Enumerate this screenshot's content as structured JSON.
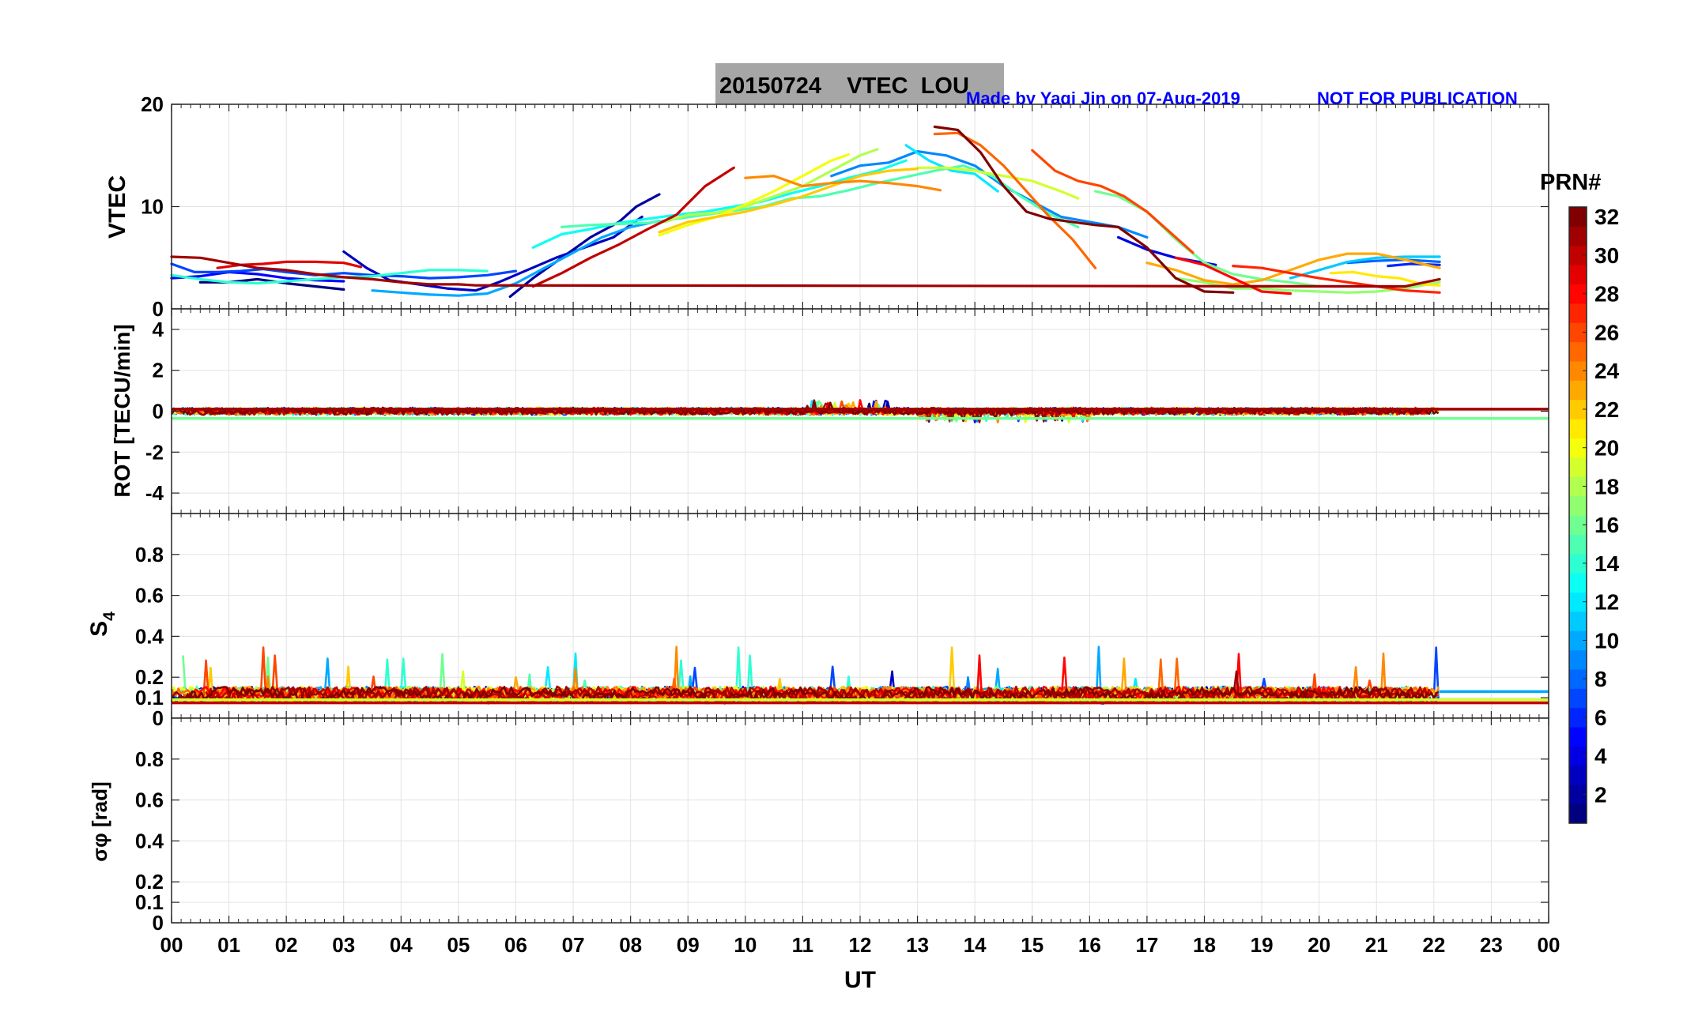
{
  "header": {
    "title": "20150724    VTEC  LOU",
    "credit": "Made by Yaqi Jin on 07-Aug-2019",
    "notice": "NOT FOR PUBLICATION"
  },
  "colors": {
    "title_box": "#a6a6a6",
    "credit_text": "#0000ff",
    "grid": "#e3e3e3",
    "axes": "#262626"
  },
  "colorbar": {
    "title": "PRN#",
    "min": 1,
    "max": 32,
    "ticks": [
      "2",
      "4",
      "6",
      "8",
      "10",
      "12",
      "14",
      "16",
      "18",
      "20",
      "22",
      "24",
      "26",
      "28",
      "30",
      "32"
    ],
    "colormap": "jet"
  },
  "chart_data": [
    {
      "type": "line",
      "panel": "vtec",
      "ylabel": "VTEC",
      "ylim": [
        0,
        20
      ],
      "yticks": [
        "0",
        "10",
        "20"
      ],
      "xlim": [
        0,
        24
      ],
      "grid": true,
      "series": [
        {
          "prn": 1,
          "x": [
            0.5,
            1,
            1.5,
            2,
            2.5,
            3
          ],
          "y": [
            2.6,
            2.6,
            2.9,
            2.5,
            2.2,
            1.9
          ]
        },
        {
          "prn": 2,
          "x": [
            5.9,
            6.3,
            6.8,
            7.3,
            7.8,
            8.1,
            8.5
          ],
          "y": [
            1.2,
            3.0,
            5.0,
            7.0,
            8.5,
            10.0,
            11.2
          ]
        },
        {
          "prn": 3,
          "x": [
            3,
            3.4,
            3.8,
            4.3,
            4.8,
            5.3,
            5.7,
            6.2,
            6.7,
            7.2,
            7.7,
            8.2
          ],
          "y": [
            5.6,
            4.0,
            2.8,
            2.4,
            2.0,
            1.8,
            2.6,
            3.8,
            5.0,
            6.0,
            7.0,
            9.0
          ]
        },
        {
          "prn": 4,
          "x": [
            16.5,
            17,
            17.5,
            18.2
          ],
          "y": [
            7.0,
            5.8,
            5.0,
            4.3
          ]
        },
        {
          "prn": 5,
          "x": [
            0,
            0.5,
            1,
            1.5,
            2,
            2.5,
            3
          ],
          "y": [
            3.0,
            3.2,
            3.6,
            3.4,
            3.0,
            2.8,
            2.7
          ]
        },
        {
          "prn": 6,
          "x": [
            21.2,
            21.6,
            22.1
          ],
          "y": [
            4.2,
            4.4,
            4.3
          ]
        },
        {
          "prn": 7,
          "x": [
            0,
            0.4,
            0.8,
            1.2,
            1.6,
            2,
            2.5,
            3,
            3.5,
            4,
            4.5,
            5,
            5.5,
            6
          ],
          "y": [
            4.4,
            3.6,
            3.6,
            3.7,
            3.9,
            3.6,
            3.3,
            3.5,
            3.3,
            3.2,
            3.0,
            3.1,
            3.3,
            3.7
          ]
        },
        {
          "prn": 8,
          "x": [
            20.5,
            21,
            21.5,
            22.1
          ],
          "y": [
            4.5,
            4.7,
            4.8,
            4.6
          ]
        },
        {
          "prn": 9,
          "x": [
            11.5,
            12,
            12.5,
            13,
            13.5,
            14,
            14.5,
            15,
            15.5,
            16,
            16.5,
            17
          ],
          "y": [
            13.0,
            14.0,
            14.3,
            15.4,
            15.0,
            14.0,
            12.0,
            10.5,
            9.0,
            8.5,
            8.0,
            7.0
          ]
        },
        {
          "prn": 10,
          "x": [
            3.5,
            4,
            4.5,
            5,
            5.5,
            6,
            6.5,
            7,
            7.5,
            8,
            8.5
          ],
          "y": [
            1.8,
            1.6,
            1.4,
            1.3,
            1.5,
            2.5,
            4.0,
            5.5,
            7.0,
            8.0,
            8.6
          ]
        },
        {
          "prn": 11,
          "x": [
            19.5,
            20,
            20.5,
            21,
            21.5,
            22.1
          ],
          "y": [
            3.0,
            3.8,
            4.6,
            5.0,
            5.1,
            5.1
          ]
        },
        {
          "prn": 12,
          "x": [
            12.8,
            13.2,
            13.6,
            14,
            14.4
          ],
          "y": [
            16.0,
            14.5,
            13.5,
            13.2,
            11.5
          ]
        },
        {
          "prn": 13,
          "x": [
            6.3,
            6.8,
            7.3,
            7.8,
            8.3,
            8.8,
            9.3,
            9.8,
            10.3,
            10.8,
            11.3,
            11.8,
            12.3,
            12.8
          ],
          "y": [
            6.0,
            7.3,
            7.8,
            8.4,
            8.8,
            9.2,
            9.5,
            10.0,
            10.5,
            11.3,
            12.0,
            12.8,
            13.5,
            14.5
          ]
        },
        {
          "prn": 14,
          "x": [
            0,
            0.5,
            1,
            1.5,
            2,
            2.5,
            3,
            3.5,
            4,
            4.5,
            5,
            5.5
          ],
          "y": [
            3.3,
            2.9,
            2.6,
            2.5,
            2.7,
            2.9,
            3.1,
            3.2,
            3.5,
            3.8,
            3.8,
            3.7
          ]
        },
        {
          "prn": 15,
          "x": [
            6.8,
            7.3,
            7.8,
            8.3,
            8.8,
            9.3,
            9.8,
            10.3,
            10.8,
            11.3,
            11.8,
            12.3,
            12.8,
            13.3,
            13.8,
            14.3,
            14.8,
            15.3,
            15.8
          ],
          "y": [
            8.0,
            8.2,
            8.3,
            8.4,
            8.8,
            9.2,
            9.6,
            10.0,
            10.8,
            11.0,
            11.6,
            12.3,
            12.9,
            13.5,
            14.0,
            13.0,
            11.0,
            9.3,
            8.0
          ]
        },
        {
          "prn": 16,
          "x": [
            16.1,
            16.5,
            17,
            17.5,
            18,
            18.5,
            19,
            19.5,
            20
          ],
          "y": [
            11.5,
            11.0,
            9.5,
            6.8,
            4.5,
            3.4,
            2.9,
            2.6,
            2.2
          ]
        },
        {
          "prn": 17,
          "x": [
            17.5,
            18,
            18.5,
            19,
            19.5,
            20,
            20.5,
            21,
            21.5,
            22.1
          ],
          "y": [
            3.0,
            2.6,
            2.0,
            2.0,
            1.8,
            1.7,
            1.6,
            1.7,
            2.0,
            2.6
          ]
        },
        {
          "prn": 18,
          "x": [
            8.6,
            9,
            9.5,
            10,
            10.5,
            11,
            11.5,
            12,
            12.3
          ],
          "y": [
            8.5,
            9.2,
            9.4,
            10.0,
            11.0,
            12.0,
            13.5,
            15.0,
            15.6
          ]
        },
        {
          "prn": 19,
          "x": [
            13,
            13.5,
            14,
            14.5,
            15,
            15.5,
            15.8
          ],
          "y": [
            13.8,
            13.8,
            13.5,
            13.0,
            12.5,
            11.5,
            10.8
          ]
        },
        {
          "prn": 20,
          "x": [
            8.5,
            9,
            9.5,
            10,
            10.5,
            11,
            11.5,
            11.8
          ],
          "y": [
            7.2,
            8.2,
            9.0,
            10.2,
            11.5,
            13.0,
            14.5,
            15.1
          ]
        },
        {
          "prn": 21,
          "x": [
            20.2,
            20.6,
            21,
            21.4,
            21.8,
            22.1
          ],
          "y": [
            3.5,
            3.6,
            3.2,
            3.0,
            2.4,
            2.3
          ]
        },
        {
          "prn": 22,
          "x": [
            8.5,
            9,
            9.5,
            10,
            10.5,
            11,
            11.5,
            12,
            12.5,
            13
          ],
          "y": [
            7.5,
            8.5,
            9.0,
            9.5,
            10.2,
            11.0,
            12.0,
            13.0,
            13.5,
            13.7
          ]
        },
        {
          "prn": 23,
          "x": [
            17,
            17.5,
            18,
            18.5,
            19,
            19.5,
            20,
            20.5,
            21,
            21.5,
            22.1
          ],
          "y": [
            4.5,
            3.8,
            2.8,
            2.4,
            2.8,
            3.8,
            4.8,
            5.4,
            5.4,
            4.8,
            4.0
          ]
        },
        {
          "prn": 24,
          "x": [
            10,
            10.5,
            11,
            11.5,
            12,
            12.5,
            13,
            13.4
          ],
          "y": [
            12.8,
            13.0,
            12.0,
            12.3,
            12.5,
            12.3,
            12.0,
            11.6
          ]
        },
        {
          "prn": 25,
          "x": [
            13.3,
            13.7,
            14.1,
            14.5,
            14.9,
            15.3,
            15.7,
            16.1
          ],
          "y": [
            17.1,
            17.2,
            16.0,
            14.0,
            11.5,
            9.0,
            6.8,
            4.0
          ]
        },
        {
          "prn": 26,
          "x": [
            15,
            15.4,
            15.8,
            16.2,
            16.6,
            17,
            17.4,
            17.8
          ],
          "y": [
            15.5,
            13.5,
            12.5,
            12.0,
            11.0,
            9.5,
            7.5,
            5.5
          ]
        },
        {
          "prn": 27,
          "x": [
            18.5,
            19,
            19.5,
            20,
            20.5,
            21,
            21.5,
            22.1
          ],
          "y": [
            4.2,
            4.0,
            3.5,
            3.0,
            2.6,
            2.2,
            1.8,
            1.6
          ]
        },
        {
          "prn": 28,
          "x": [
            17.5,
            18,
            18.5,
            19,
            19.5
          ],
          "y": [
            5.0,
            4.3,
            3.0,
            1.7,
            1.5
          ]
        },
        {
          "prn": 29,
          "x": [
            0.8,
            1.2,
            1.6,
            2,
            2.5,
            3,
            3.3
          ],
          "y": [
            4.0,
            4.3,
            4.4,
            4.6,
            4.6,
            4.5,
            4.1
          ]
        },
        {
          "prn": 30,
          "x": [
            6.3,
            6.8,
            7.3,
            7.8,
            8.3,
            8.8,
            9.3,
            9.8
          ],
          "y": [
            2.2,
            3.5,
            5.0,
            6.3,
            7.8,
            9.2,
            12.0,
            13.8
          ]
        },
        {
          "prn": 31,
          "x": [
            0,
            0.5,
            1,
            1.5,
            2,
            2.5,
            3,
            3.5,
            4,
            4.5,
            5,
            5.3,
            21.5,
            22.1
          ],
          "y": [
            5.1,
            5.0,
            4.5,
            4.0,
            3.8,
            3.4,
            3.1,
            2.9,
            2.6,
            2.4,
            2.4,
            2.3,
            2.2,
            2.9
          ]
        },
        {
          "prn": 32,
          "x": [
            13.3,
            13.7,
            14.1,
            14.5,
            14.9,
            15.3,
            15.7,
            16.1,
            16.5,
            17,
            17.5,
            18,
            18.5
          ],
          "y": [
            17.8,
            17.5,
            15.3,
            12.0,
            9.5,
            8.8,
            8.5,
            8.2,
            8.0,
            6.0,
            3.0,
            1.7,
            1.6
          ]
        }
      ]
    },
    {
      "type": "line",
      "panel": "rot",
      "ylabel": "ROT [TECU/min]",
      "ylim": [
        -5,
        5
      ],
      "yticks": [
        "-4",
        "-2",
        "0",
        "2",
        "4"
      ],
      "xlim": [
        0,
        24
      ],
      "grid": true,
      "baselines": [
        {
          "prn": 16,
          "x": [
            0,
            24
          ],
          "y": [
            -0.35,
            -0.35
          ]
        },
        {
          "prn": 31,
          "x": [
            0,
            24
          ],
          "y": [
            0.1,
            0.1
          ]
        }
      ],
      "noise_band": {
        "x": [
          0,
          22.1
        ],
        "amplitude_tecu_per_min": 0.25,
        "max_amplitude": 0.55
      }
    },
    {
      "type": "line",
      "panel": "s4",
      "ylabel": "S4",
      "ylim": [
        0,
        1
      ],
      "yticks": [
        "0",
        "0.1",
        "0.2",
        "0.4",
        "0.6",
        "0.8"
      ],
      "xlim": [
        0,
        24
      ],
      "grid": true,
      "baselines": [
        {
          "prn": 10,
          "x": [
            22.1,
            24
          ],
          "y": [
            0.13,
            0.13
          ]
        },
        {
          "prn": 19,
          "x": [
            0,
            24
          ],
          "y": [
            0.09,
            0.09
          ]
        },
        {
          "prn": 30,
          "x": [
            0,
            24
          ],
          "y": [
            0.075,
            0.075
          ]
        }
      ],
      "noise_band": {
        "x": [
          0,
          22.1
        ],
        "typical": 0.1,
        "max": 0.35
      }
    },
    {
      "type": "line",
      "panel": "sigma_phi",
      "ylabel": "σφ [rad]",
      "ylim": [
        0,
        1
      ],
      "yticks": [
        "0",
        "0.1",
        "0.2",
        "0.4",
        "0.6",
        "0.8"
      ],
      "xlim": [
        0,
        24
      ],
      "xlabel": "UT",
      "xticks": [
        "00",
        "01",
        "02",
        "03",
        "04",
        "05",
        "06",
        "07",
        "08",
        "09",
        "10",
        "11",
        "12",
        "13",
        "14",
        "15",
        "16",
        "17",
        "18",
        "19",
        "20",
        "21",
        "22",
        "23",
        "00"
      ],
      "grid": true,
      "series": []
    }
  ]
}
